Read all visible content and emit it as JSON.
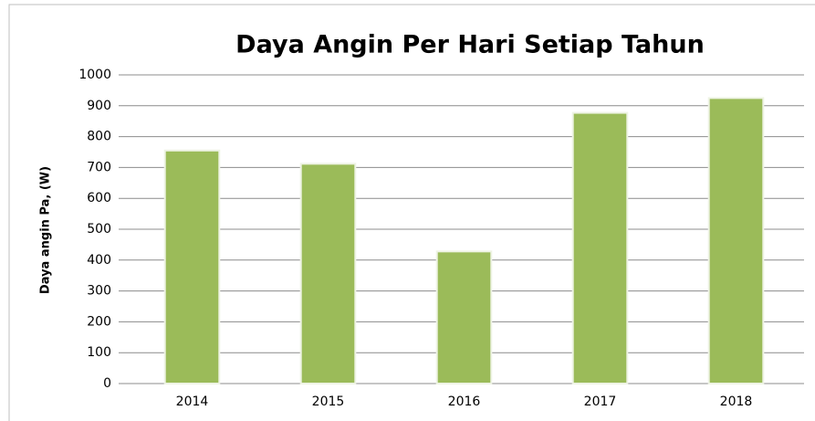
{
  "chart_data": {
    "type": "bar",
    "title": "Daya Angin Per Hari Setiap Tahun",
    "y_label": "Daya angin Pa, (W)",
    "categories": [
      "2014",
      "2015",
      "2016",
      "2017",
      "2018"
    ],
    "values": [
      755,
      712,
      428,
      877,
      925
    ],
    "color": "#9bbb59",
    "ylim": [
      0,
      1000
    ],
    "yticks": [
      0,
      100,
      200,
      300,
      400,
      500,
      600,
      700,
      800,
      900,
      1000
    ],
    "grid": true
  }
}
